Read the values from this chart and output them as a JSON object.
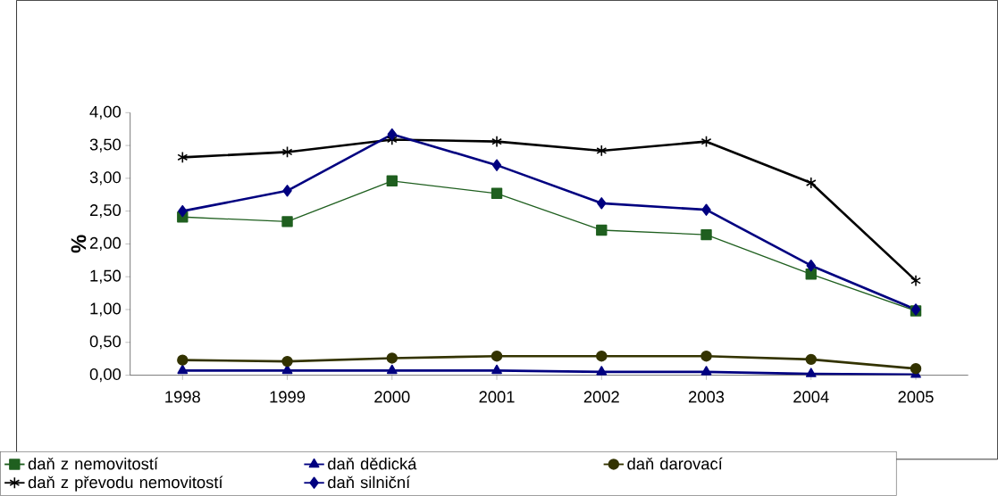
{
  "chart_data": {
    "type": "line",
    "ylabel": "%",
    "categories": [
      "1998",
      "1999",
      "2000",
      "2001",
      "2002",
      "2003",
      "2004",
      "2005"
    ],
    "ylim": [
      0,
      4
    ],
    "yticks": [
      {
        "value": 0,
        "label": "0,00"
      },
      {
        "value": 0.5,
        "label": "0,50"
      },
      {
        "value": 1,
        "label": "1,00"
      },
      {
        "value": 1.5,
        "label": "1,50"
      },
      {
        "value": 2,
        "label": "2,00"
      },
      {
        "value": 2.5,
        "label": "2,50"
      },
      {
        "value": 3,
        "label": "3,00"
      },
      {
        "value": 3.5,
        "label": "3,50"
      },
      {
        "value": 4,
        "label": "4,00"
      }
    ],
    "legend": "bottom",
    "grid": false,
    "series": [
      {
        "name": "daň z nemovitostí",
        "color": "#1f5f1f",
        "marker": "square",
        "values": [
          2.41,
          2.34,
          2.96,
          2.77,
          2.21,
          2.14,
          1.54,
          0.98
        ]
      },
      {
        "name": "daň dědická",
        "color": "#000080",
        "marker": "triangle",
        "values": [
          0.07,
          0.07,
          0.07,
          0.07,
          0.05,
          0.05,
          0.02,
          0.01
        ]
      },
      {
        "name": "daň darovací",
        "color": "#333300",
        "marker": "circle",
        "values": [
          0.23,
          0.21,
          0.26,
          0.29,
          0.29,
          0.29,
          0.24,
          0.1
        ]
      },
      {
        "name": "daň z převodu nemovitostí",
        "color": "#000000",
        "marker": "cross",
        "values": [
          3.32,
          3.4,
          3.59,
          3.56,
          3.42,
          3.56,
          2.93,
          1.44
        ]
      },
      {
        "name": "daň silniční",
        "color": "#000080",
        "marker": "diamond",
        "values": [
          2.5,
          2.81,
          3.67,
          3.2,
          2.62,
          2.52,
          1.67,
          1.0
        ]
      }
    ]
  }
}
